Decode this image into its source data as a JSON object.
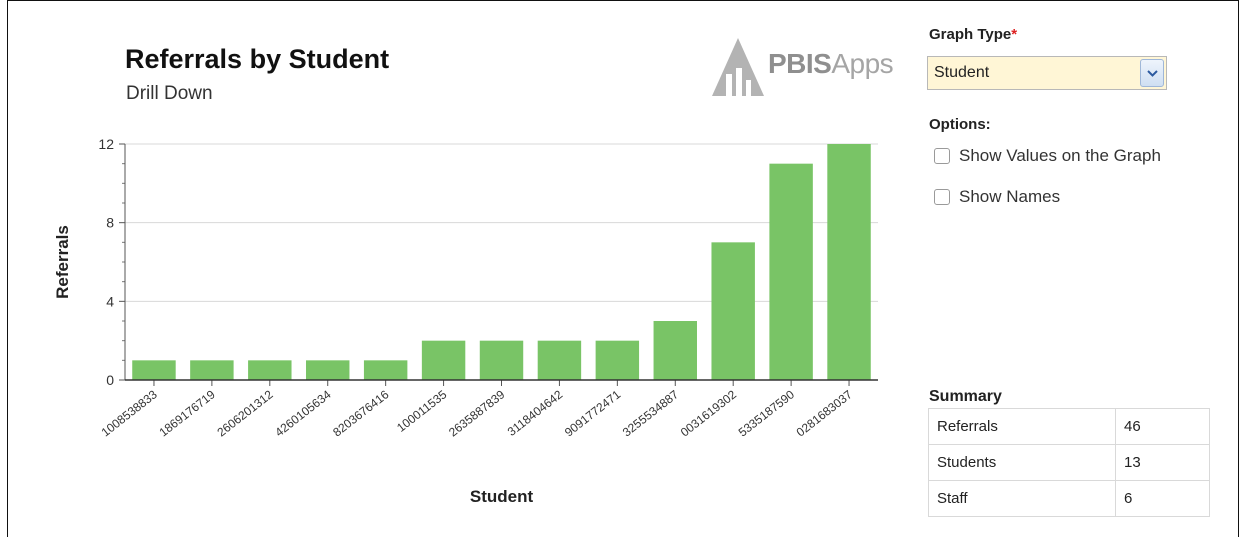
{
  "chart_data": {
    "type": "bar",
    "title": "Referrals by Student",
    "subtitle": "Drill Down",
    "xlabel": "Student",
    "ylabel": "Referrals",
    "ylim": [
      0,
      12
    ],
    "yticks": [
      "0",
      "4",
      "8",
      "12"
    ],
    "grid": true,
    "bar_color": "#79c466",
    "categories": [
      "1008538833",
      "1869176719",
      "2606201312",
      "4260105634",
      "8203676416",
      "100011535",
      "2635887839",
      "3118404642",
      "9091772471",
      "3255534887",
      "0031619302",
      "5335187590",
      "0281683037"
    ],
    "values": [
      1,
      1,
      1,
      1,
      1,
      2,
      2,
      2,
      2,
      3,
      7,
      11,
      12
    ]
  },
  "logo": {
    "bold": "PBIS",
    "light": "Apps"
  },
  "panel": {
    "graph_type_label": "Graph Type",
    "required_mark": "*",
    "graph_type_value": "Student",
    "options_label": "Options:",
    "options": [
      {
        "label": "Show Values on the Graph",
        "checked": false
      },
      {
        "label": "Show Names",
        "checked": false
      }
    ],
    "summary_label": "Summary",
    "summary": [
      {
        "label": "Referrals",
        "value": "46"
      },
      {
        "label": "Students",
        "value": "13"
      },
      {
        "label": "Staff",
        "value": "6"
      }
    ]
  },
  "colors": {
    "select_bg": "#fff6d6",
    "required": "#dd2222",
    "bar": "#79c466"
  }
}
